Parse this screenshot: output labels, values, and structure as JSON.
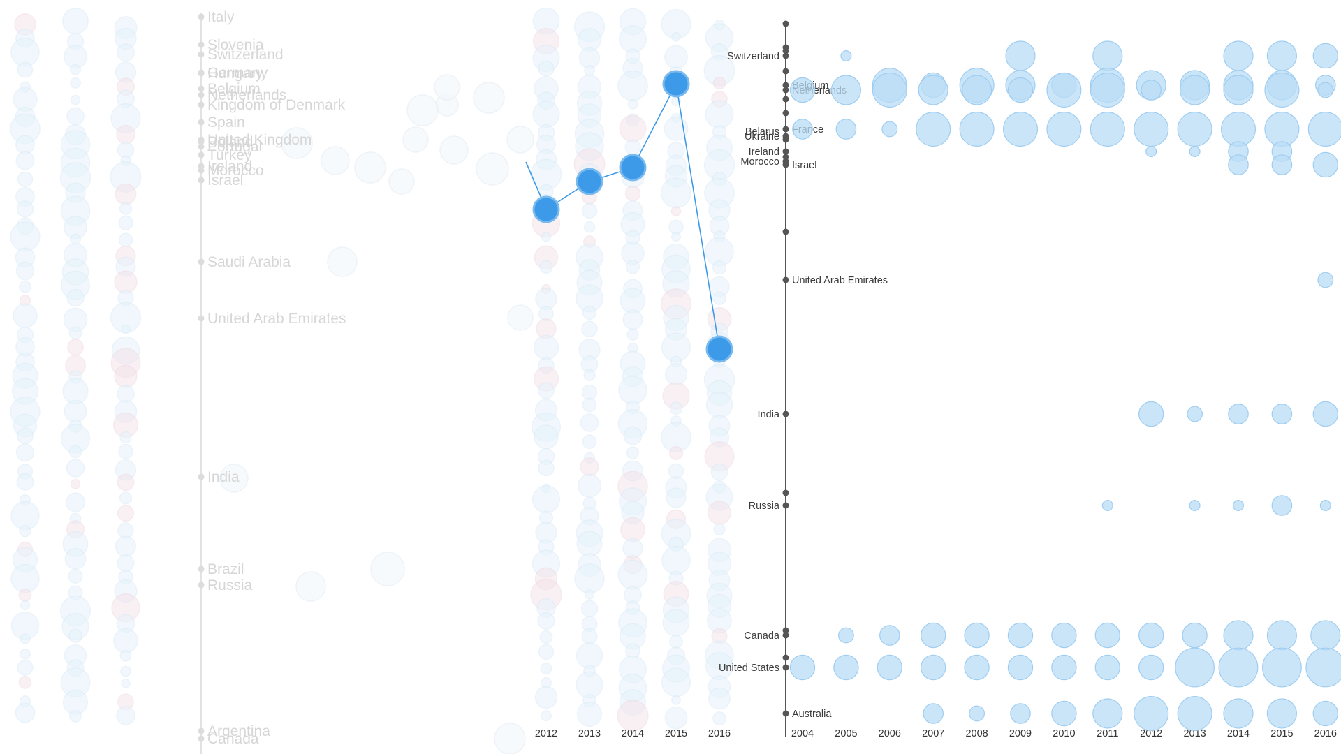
{
  "chart_data": [
    {
      "type": "scatter",
      "title": "",
      "ghost_countries": [
        "Italy",
        "Slovenia",
        "Switzerland",
        "Germany",
        "Hungary",
        "Belgium",
        "Netherlands",
        "Kingdom of Denmark",
        "Spain",
        "United Kingdom",
        "Poland",
        "Portugal",
        "Turkey",
        "Ireland",
        "Morocco",
        "Israel",
        "Saudi Arabia",
        "United Arab Emirates",
        "India",
        "Brazil",
        "Russia",
        "Argentina",
        "Canada"
      ],
      "x": [
        2012,
        2013,
        2014,
        2015,
        2016
      ],
      "xlabel": "",
      "ylabel": "",
      "highlight_series": {
        "name": "",
        "values": [
          0.62,
          0.66,
          0.68,
          0.8,
          0.42
        ]
      },
      "ylim": [
        0,
        1
      ]
    },
    {
      "type": "scatter",
      "title": "",
      "years": [
        "2004",
        "2005",
        "2006",
        "2007",
        "2008",
        "2009",
        "2010",
        "2011",
        "2012",
        "2013",
        "2014",
        "2015",
        "2016"
      ],
      "countries": [
        "Switzerland",
        "Belgium",
        "Netherlands",
        "Belarus",
        "Ukraine",
        "France",
        "Ireland",
        "Morocco",
        "Israel",
        "United Arab Emirates",
        "India",
        "Russia",
        "Canada",
        "United States",
        "Australia"
      ],
      "series": [
        {
          "name": "Switzerland",
          "values": [
            null,
            1,
            null,
            null,
            null,
            5,
            null,
            5,
            null,
            null,
            5,
            5,
            4
          ]
        },
        {
          "name": "Belgium",
          "values": [
            null,
            null,
            6,
            4,
            6,
            5,
            4,
            6,
            5,
            5,
            5,
            5,
            3
          ]
        },
        {
          "name": "Netherlands",
          "values": [
            4,
            5,
            6,
            5,
            5,
            4,
            6,
            6,
            3,
            5,
            5,
            6,
            2
          ]
        },
        {
          "name": "France",
          "values": [
            3,
            3,
            2,
            6,
            6,
            6,
            6,
            6,
            6,
            6,
            6,
            6,
            6
          ]
        },
        {
          "name": "Ireland",
          "values": [
            null,
            null,
            null,
            null,
            null,
            null,
            null,
            null,
            1,
            1,
            3,
            3,
            null
          ]
        },
        {
          "name": "Israel",
          "values": [
            null,
            null,
            null,
            null,
            null,
            null,
            null,
            null,
            null,
            null,
            3,
            3,
            4
          ]
        },
        {
          "name": "United Arab Emirates",
          "values": [
            null,
            null,
            null,
            null,
            null,
            null,
            null,
            null,
            null,
            null,
            null,
            null,
            2
          ]
        },
        {
          "name": "India",
          "values": [
            null,
            null,
            null,
            null,
            null,
            null,
            null,
            null,
            4,
            2,
            3,
            3,
            4
          ]
        },
        {
          "name": "Russia",
          "values": [
            null,
            null,
            null,
            null,
            null,
            null,
            null,
            1,
            null,
            1,
            1,
            3,
            1
          ]
        },
        {
          "name": "Canada",
          "values": [
            null,
            2,
            3,
            4,
            4,
            4,
            4,
            4,
            4,
            4,
            5,
            5,
            5
          ]
        },
        {
          "name": "United States",
          "values": [
            4,
            4,
            4,
            4,
            4,
            4,
            4,
            4,
            4,
            7,
            7,
            7,
            7
          ]
        },
        {
          "name": "Australia",
          "values": [
            null,
            null,
            null,
            3,
            2,
            3,
            4,
            5,
            6,
            6,
            5,
            5,
            4
          ]
        }
      ]
    }
  ],
  "colors": {
    "accent": "#3d9ae8",
    "bubble": "#b9dcf6",
    "ghost": "#e6e6e6",
    "axis": "#555555"
  }
}
